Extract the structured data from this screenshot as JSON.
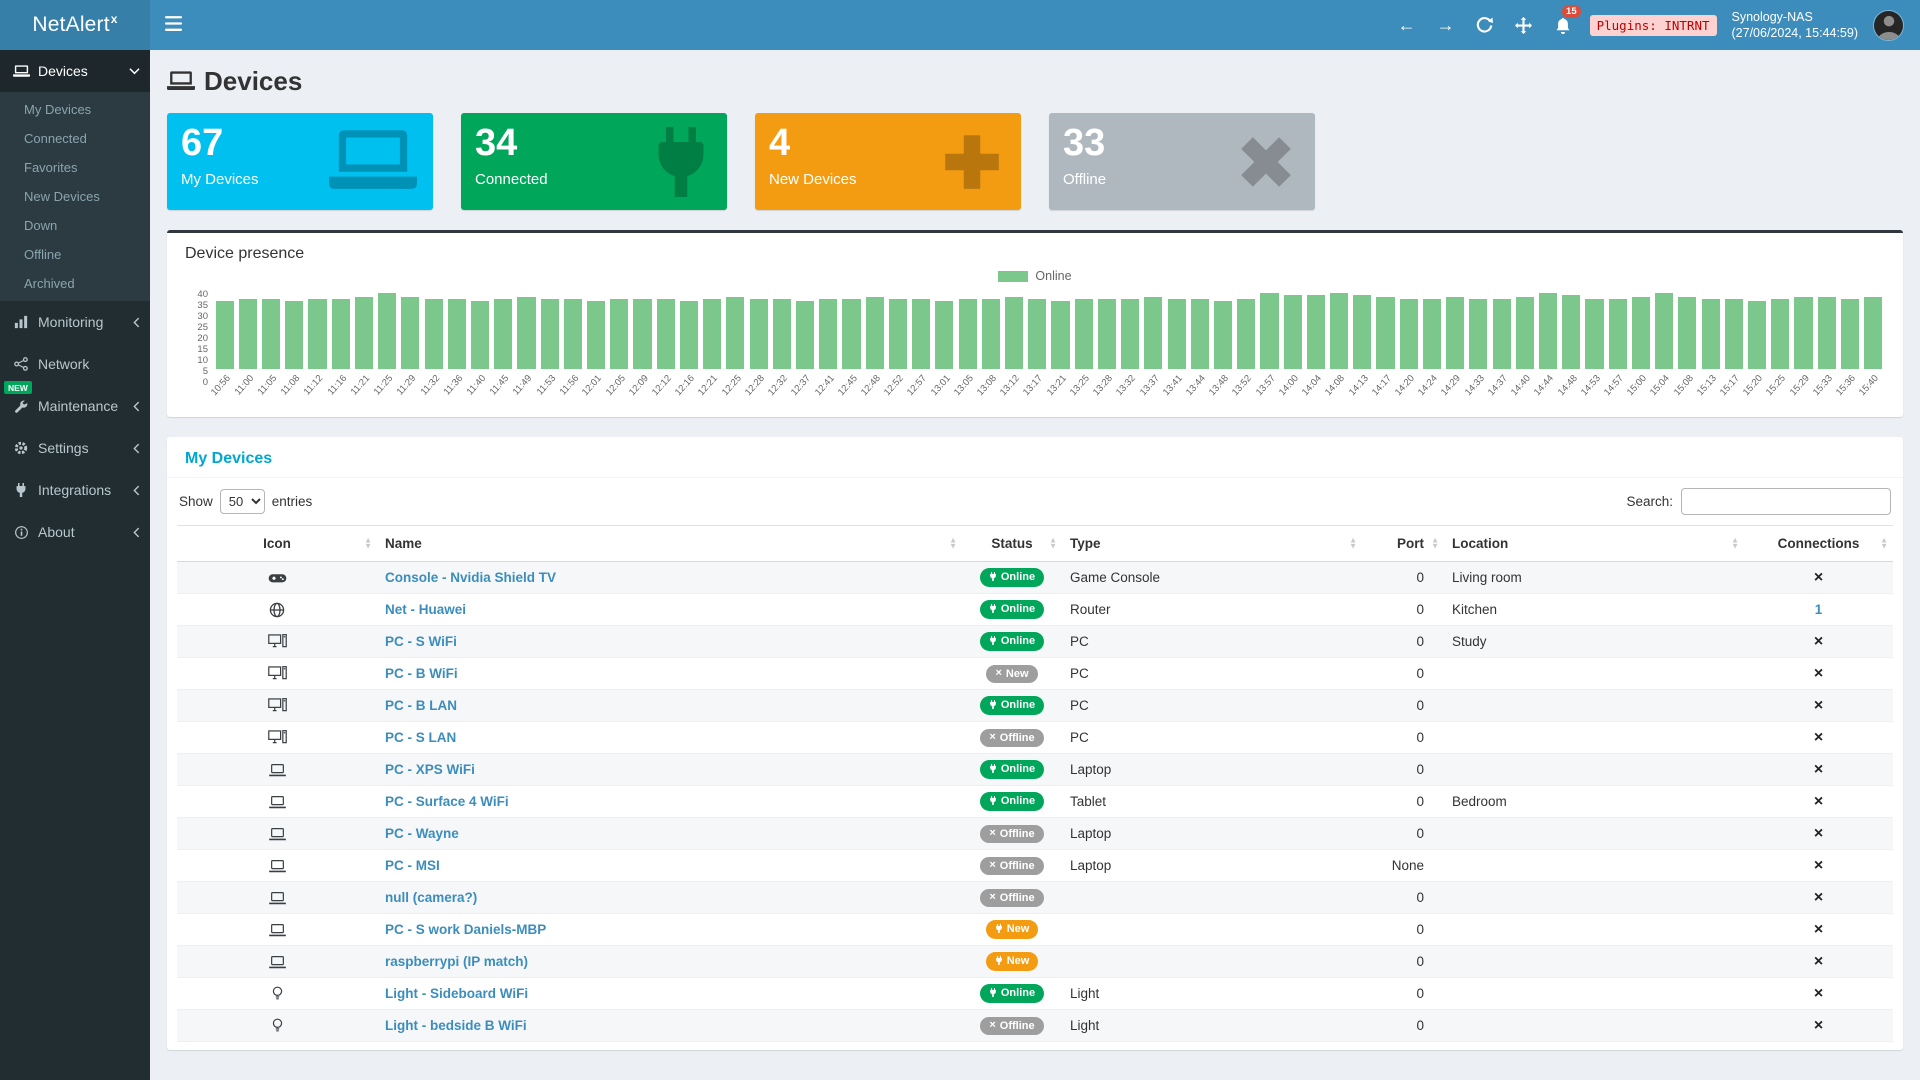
{
  "app": {
    "name": "NetAlert",
    "name_sup": "x"
  },
  "topbar": {
    "notifications": "15",
    "plugins_chip": "Plugins: INTRNT",
    "host": "Synology-NAS",
    "timestamp": "(27/06/2024, 15:44:59)"
  },
  "sidebar": {
    "sections": [
      {
        "label": "Devices",
        "icon": "laptop",
        "expanded": true,
        "children": [
          {
            "label": "My Devices"
          },
          {
            "label": "Connected"
          },
          {
            "label": "Favorites"
          },
          {
            "label": "New Devices"
          },
          {
            "label": "Down"
          },
          {
            "label": "Offline"
          },
          {
            "label": "Archived"
          }
        ]
      },
      {
        "label": "Monitoring",
        "icon": "chart"
      },
      {
        "label": "Network",
        "icon": "network"
      },
      {
        "label": "Maintenance",
        "icon": "wrench",
        "badge": "NEW"
      },
      {
        "label": "Settings",
        "icon": "gear"
      },
      {
        "label": "Integrations",
        "icon": "plug"
      },
      {
        "label": "About",
        "icon": "info"
      }
    ]
  },
  "page": {
    "title": "Devices"
  },
  "cards": [
    {
      "value": "67",
      "label": "My Devices",
      "color": "#00c0ef",
      "icon": "laptop"
    },
    {
      "value": "34",
      "label": "Connected",
      "color": "#00a65a",
      "icon": "plug"
    },
    {
      "value": "4",
      "label": "New Devices",
      "color": "#f39c12",
      "icon": "plus"
    },
    {
      "value": "33",
      "label": "Offline",
      "color": "#b0b8bf",
      "icon": "x"
    }
  ],
  "presence": {
    "title": "Device presence"
  },
  "chart_data": {
    "type": "bar",
    "title": "Device presence",
    "ylim": [
      0,
      40
    ],
    "yticks": [
      0,
      5,
      10,
      15,
      20,
      25,
      30,
      35,
      40
    ],
    "legend_position": "top-center",
    "x": [
      "10:56",
      "11:00",
      "11:05",
      "11:08",
      "11:12",
      "11:16",
      "11:21",
      "11:25",
      "11:29",
      "11:32",
      "11:36",
      "11:40",
      "11:45",
      "11:49",
      "11:53",
      "11:56",
      "12:01",
      "12:05",
      "12:09",
      "12:12",
      "12:16",
      "12:21",
      "12:25",
      "12:28",
      "12:32",
      "12:37",
      "12:41",
      "12:45",
      "12:48",
      "12:52",
      "12:57",
      "13:01",
      "13:05",
      "13:08",
      "13:12",
      "13:17",
      "13:21",
      "13:25",
      "13:28",
      "13:32",
      "13:37",
      "13:41",
      "13:44",
      "13:48",
      "13:52",
      "13:57",
      "14:00",
      "14:04",
      "14:08",
      "14:13",
      "14:17",
      "14:20",
      "14:24",
      "14:29",
      "14:33",
      "14:37",
      "14:40",
      "14:44",
      "14:48",
      "14:53",
      "14:57",
      "15:00",
      "15:04",
      "15:08",
      "15:13",
      "15:17",
      "15:20",
      "15:25",
      "15:29",
      "15:33",
      "15:36",
      "15:40"
    ],
    "series": [
      {
        "name": "Online",
        "color": "#7cc88c",
        "values": [
          34,
          35,
          35,
          34,
          35,
          35,
          36,
          38,
          36,
          35,
          35,
          34,
          35,
          36,
          35,
          35,
          34,
          35,
          35,
          35,
          34,
          35,
          36,
          35,
          35,
          34,
          35,
          35,
          36,
          35,
          35,
          34,
          35,
          35,
          36,
          35,
          34,
          35,
          35,
          35,
          36,
          35,
          35,
          34,
          35,
          38,
          37,
          37,
          38,
          37,
          36,
          35,
          35,
          36,
          35,
          35,
          36,
          38,
          37,
          35,
          35,
          36,
          38,
          36,
          35,
          35,
          34,
          35,
          36,
          36,
          35,
          36
        ]
      }
    ]
  },
  "table": {
    "tab": "My Devices",
    "show": "Show",
    "entries": "entries",
    "page_length": "50",
    "search": "Search:",
    "columns": [
      "Icon",
      "Name",
      "Status",
      "Type",
      "Port",
      "Location",
      "Connections"
    ],
    "rows": [
      {
        "icon": "gamepad",
        "name": "Console - Nvidia Shield TV",
        "status": "Online",
        "status_color": "green",
        "status_icon": "plug",
        "type": "Game Console",
        "port": "0",
        "location": "Living room",
        "connections": "x"
      },
      {
        "icon": "globe",
        "name": "Net - Huawei",
        "status": "Online",
        "status_color": "green",
        "status_icon": "plug",
        "type": "Router",
        "port": "0",
        "location": "Kitchen",
        "connections": "1"
      },
      {
        "icon": "desktop",
        "name": "PC - S WiFi",
        "status": "Online",
        "status_color": "green",
        "status_icon": "plug",
        "type": "PC",
        "port": "0",
        "location": "Study",
        "connections": "x"
      },
      {
        "icon": "desktop",
        "name": "PC - B WiFi",
        "status": "New",
        "status_color": "gray",
        "status_icon": "x",
        "type": "PC",
        "port": "0",
        "location": "",
        "connections": "x"
      },
      {
        "icon": "desktop",
        "name": "PC - B LAN",
        "status": "Online",
        "status_color": "green",
        "status_icon": "plug",
        "type": "PC",
        "port": "0",
        "location": "",
        "connections": "x"
      },
      {
        "icon": "desktop",
        "name": "PC - S LAN",
        "status": "Offline",
        "status_color": "gray",
        "status_icon": "x",
        "type": "PC",
        "port": "0",
        "location": "",
        "connections": "x"
      },
      {
        "icon": "laptop",
        "name": "PC - XPS WiFi",
        "status": "Online",
        "status_color": "green",
        "status_icon": "plug",
        "type": "Laptop",
        "port": "0",
        "location": "",
        "connections": "x"
      },
      {
        "icon": "laptop",
        "name": "PC - Surface 4 WiFi",
        "status": "Online",
        "status_color": "green",
        "status_icon": "plug",
        "type": "Tablet",
        "port": "0",
        "location": "Bedroom",
        "connections": "x"
      },
      {
        "icon": "laptop",
        "name": "PC - Wayne",
        "status": "Offline",
        "status_color": "gray",
        "status_icon": "x",
        "type": "Laptop",
        "port": "0",
        "location": "",
        "connections": "x"
      },
      {
        "icon": "laptop",
        "name": "PC - MSI",
        "status": "Offline",
        "status_color": "gray",
        "status_icon": "x",
        "type": "Laptop",
        "port": "None",
        "location": "",
        "connections": "x"
      },
      {
        "icon": "laptop",
        "name": "null (camera?)",
        "status": "Offline",
        "status_color": "gray",
        "status_icon": "x",
        "type": "",
        "port": "0",
        "location": "",
        "connections": "x"
      },
      {
        "icon": "laptop",
        "name": "PC - S work Daniels-MBP",
        "status": "New",
        "status_color": "orange",
        "status_icon": "plug",
        "type": "",
        "port": "0",
        "location": "",
        "connections": "x"
      },
      {
        "icon": "laptop",
        "name": "raspberrypi (IP match)",
        "status": "New",
        "status_color": "orange",
        "status_icon": "plug",
        "type": "",
        "port": "0",
        "location": "",
        "connections": "x"
      },
      {
        "icon": "lightbulb",
        "name": "Light - Sideboard WiFi",
        "status": "Online",
        "status_color": "green",
        "status_icon": "plug",
        "type": "Light",
        "port": "0",
        "location": "",
        "connections": "x"
      },
      {
        "icon": "lightbulb",
        "name": "Light - bedside B WiFi",
        "status": "Offline",
        "status_color": "gray",
        "status_icon": "x",
        "type": "Light",
        "port": "0",
        "location": "",
        "connections": "x"
      }
    ]
  }
}
